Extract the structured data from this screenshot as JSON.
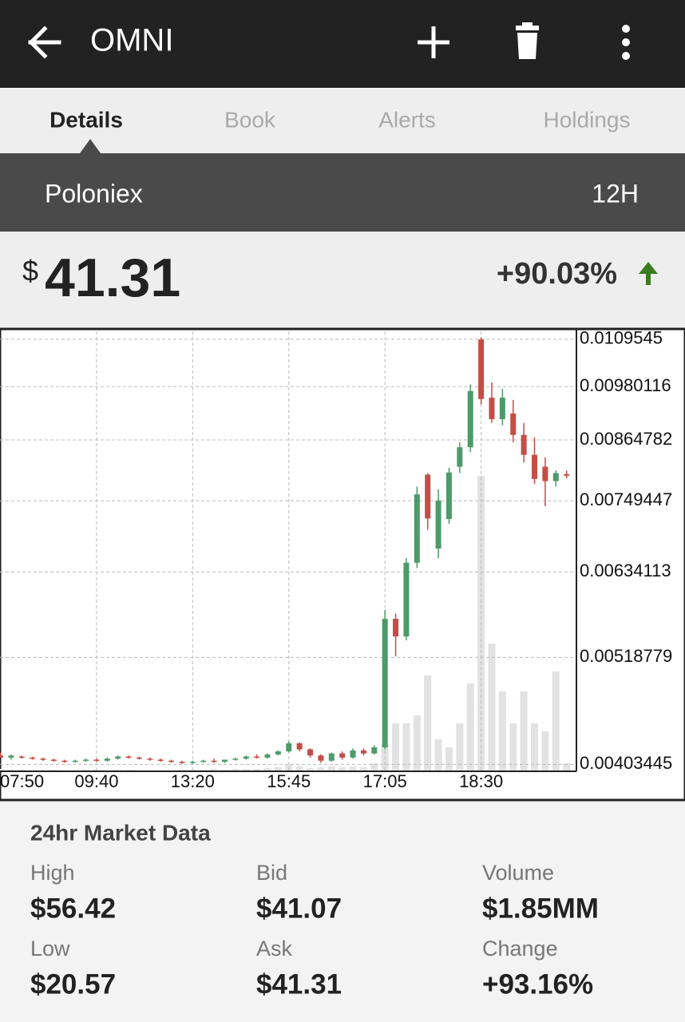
{
  "header": {
    "title": "OMNI"
  },
  "tabs": [
    "Details",
    "Book",
    "Alerts",
    "Holdings"
  ],
  "exchange": {
    "name": "Poloniex",
    "period": "12H"
  },
  "price": {
    "currency": "$",
    "value": "41.31",
    "change": "+90.03%"
  },
  "chart_data": {
    "type": "candlestick",
    "categories": [
      "07:50",
      null,
      null,
      null,
      null,
      null,
      null,
      null,
      null,
      "09:40",
      null,
      null,
      null,
      null,
      null,
      null,
      null,
      null,
      "13:20",
      null,
      null,
      null,
      null,
      null,
      null,
      null,
      null,
      "15:45",
      null,
      null,
      null,
      null,
      null,
      null,
      null,
      null,
      "17:05",
      null,
      null,
      null,
      null,
      null,
      null,
      null,
      null,
      "18:30",
      null,
      null,
      null,
      null,
      null,
      null,
      null,
      null
    ],
    "open": [
      0.00412,
      0.0041,
      0.00411,
      0.0041,
      0.00409,
      0.00408,
      0.00407,
      0.00406,
      0.00407,
      0.00408,
      0.00407,
      0.00409,
      0.00411,
      0.0041,
      0.00409,
      0.00408,
      0.00407,
      0.00406,
      0.00405,
      0.00406,
      0.00407,
      0.00406,
      0.00408,
      0.00409,
      0.00411,
      0.0041,
      0.00413,
      0.00416,
      0.00424,
      0.00418,
      0.00412,
      0.00407,
      0.00414,
      0.0041,
      0.00417,
      0.00414,
      0.0042,
      0.00568,
      0.00545,
      0.00648,
      0.00797,
      0.0067,
      0.00718,
      0.00812,
      0.0085,
      0.01095,
      0.00955,
      0.00908,
      0.0092,
      0.00875,
      0.00835,
      0.00812,
      0.00785,
      0.00798
    ],
    "high": [
      0.00415,
      0.00413,
      0.00412,
      0.00411,
      0.0041,
      0.00409,
      0.00408,
      0.00408,
      0.00409,
      0.00409,
      0.0041,
      0.00412,
      0.00412,
      0.00411,
      0.0041,
      0.00409,
      0.00408,
      0.00407,
      0.00407,
      0.00408,
      0.00409,
      0.00408,
      0.0041,
      0.00412,
      0.00413,
      0.00414,
      0.00417,
      0.00426,
      0.00425,
      0.00419,
      0.00413,
      0.00415,
      0.00416,
      0.00419,
      0.00419,
      0.00422,
      0.0058,
      0.00575,
      0.00655,
      0.00775,
      0.008,
      0.0077,
      0.0081,
      0.0086,
      0.00985,
      0.011,
      0.0099,
      0.00975,
      0.0095,
      0.009,
      0.0087,
      0.0083,
      0.00805,
      0.00805
    ],
    "low": [
      0.0041,
      0.00408,
      0.00409,
      0.00408,
      0.00407,
      0.00406,
      0.00405,
      0.00405,
      0.00406,
      0.00406,
      0.00406,
      0.00408,
      0.00409,
      0.00408,
      0.00407,
      0.00406,
      0.00405,
      0.00404,
      0.00404,
      0.00405,
      0.00405,
      0.00405,
      0.00407,
      0.00408,
      0.00409,
      0.00409,
      0.00412,
      0.00415,
      0.00416,
      0.0041,
      0.00405,
      0.00406,
      0.00408,
      0.00409,
      0.00412,
      0.00413,
      0.00418,
      0.0052,
      0.0054,
      0.0064,
      0.007,
      0.00655,
      0.0071,
      0.008,
      0.0084,
      0.0094,
      0.009,
      0.00895,
      0.0086,
      0.0082,
      0.0078,
      0.0074,
      0.00775,
      0.0079
    ],
    "close": [
      0.0041,
      0.00412,
      0.0041,
      0.00409,
      0.00408,
      0.00407,
      0.00406,
      0.00407,
      0.00408,
      0.00407,
      0.00409,
      0.00411,
      0.0041,
      0.00409,
      0.00408,
      0.00407,
      0.00406,
      0.00405,
      0.00406,
      0.00407,
      0.00406,
      0.00408,
      0.00409,
      0.00411,
      0.0041,
      0.00413,
      0.00416,
      0.00424,
      0.00418,
      0.00412,
      0.00407,
      0.00414,
      0.0041,
      0.00417,
      0.00414,
      0.0042,
      0.00568,
      0.00545,
      0.00648,
      0.00761,
      0.00719,
      0.0075,
      0.00801,
      0.0085,
      0.0097,
      0.00952,
      0.00908,
      0.00955,
      0.00875,
      0.00835,
      0.00789,
      0.00785,
      0.008,
      0.00795
    ],
    "volume": [
      3,
      2,
      2,
      1,
      1,
      2,
      1,
      1,
      2,
      2,
      1,
      2,
      2,
      1,
      1,
      1,
      1,
      2,
      2,
      2,
      3,
      2,
      3,
      3,
      3,
      4,
      5,
      8,
      6,
      4,
      5,
      6,
      5,
      6,
      5,
      10,
      35,
      60,
      60,
      70,
      120,
      40,
      30,
      60,
      110,
      370,
      160,
      100,
      60,
      100,
      60,
      50,
      125,
      10
    ],
    "up_color": "#4e9a6a",
    "down_color": "#c44d45",
    "volume_color": "#e2e2e2",
    "ylim": [
      0.00397,
      0.01116
    ],
    "yticks": [
      0.00403445,
      0.00518779,
      0.00634113,
      0.00749447,
      0.00864782,
      0.00980116,
      0.0109545
    ],
    "log_scale": true,
    "grid": true
  },
  "market_data": {
    "title": "24hr Market Data",
    "items": [
      {
        "label": "High",
        "value": "$56.42"
      },
      {
        "label": "Bid",
        "value": "$41.07"
      },
      {
        "label": "Volume",
        "value": "$1.85MM"
      },
      {
        "label": "Low",
        "value": "$20.57"
      },
      {
        "label": "Ask",
        "value": "$41.31"
      },
      {
        "label": "Change",
        "value": "+93.16%"
      }
    ]
  }
}
